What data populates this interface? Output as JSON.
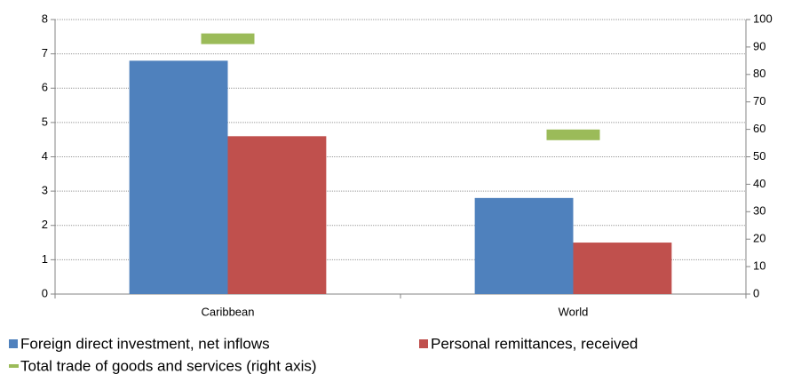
{
  "chart_data": {
    "type": "bar",
    "categories": [
      "Caribbean",
      "World"
    ],
    "series": [
      {
        "name": "Foreign direct investment, net inflows",
        "color": "#4f81bd",
        "values": [
          6.8,
          2.8
        ]
      },
      {
        "name": "Personal remittances, received",
        "color": "#c0504d",
        "values": [
          4.6,
          1.5
        ]
      },
      {
        "name": "Total trade of goods and services (right axis)",
        "color": "#9bbb59",
        "values": [
          93,
          58
        ],
        "axis": "y2"
      }
    ],
    "ylim": [
      0,
      8
    ],
    "yticks": [
      0,
      1,
      2,
      3,
      4,
      5,
      6,
      7,
      8
    ],
    "y2lim": [
      0,
      100
    ],
    "y2ticks": [
      0,
      10,
      20,
      30,
      40,
      50,
      60,
      70,
      80,
      90,
      100
    ],
    "grid": true,
    "legend": "bottom"
  }
}
